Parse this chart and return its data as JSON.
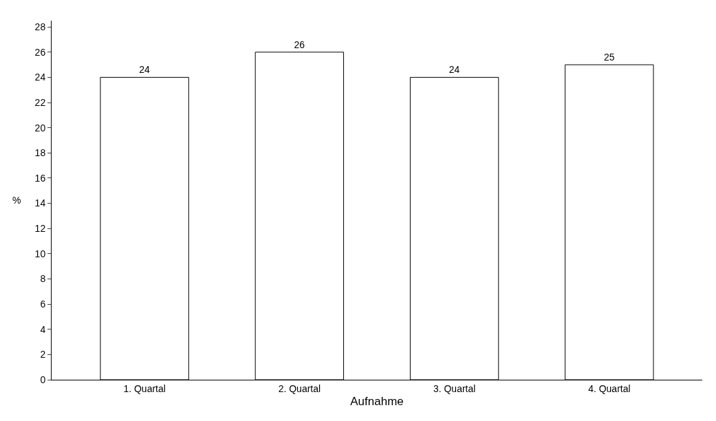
{
  "chart_data": {
    "type": "bar",
    "xlabel": "Aufnahme",
    "ylabel": "%",
    "categories": [
      "1. Quartal",
      "2. Quartal",
      "3. Quartal",
      "4. Quartal"
    ],
    "values": [
      24,
      26,
      24,
      25
    ],
    "color": "#ffffff",
    "ylim": [
      0,
      28.5
    ],
    "yticks": [
      0,
      2,
      4,
      6,
      8,
      10,
      12,
      14,
      16,
      18,
      20,
      22,
      24,
      26,
      28
    ],
    "data_labels": true,
    "grid": false
  }
}
